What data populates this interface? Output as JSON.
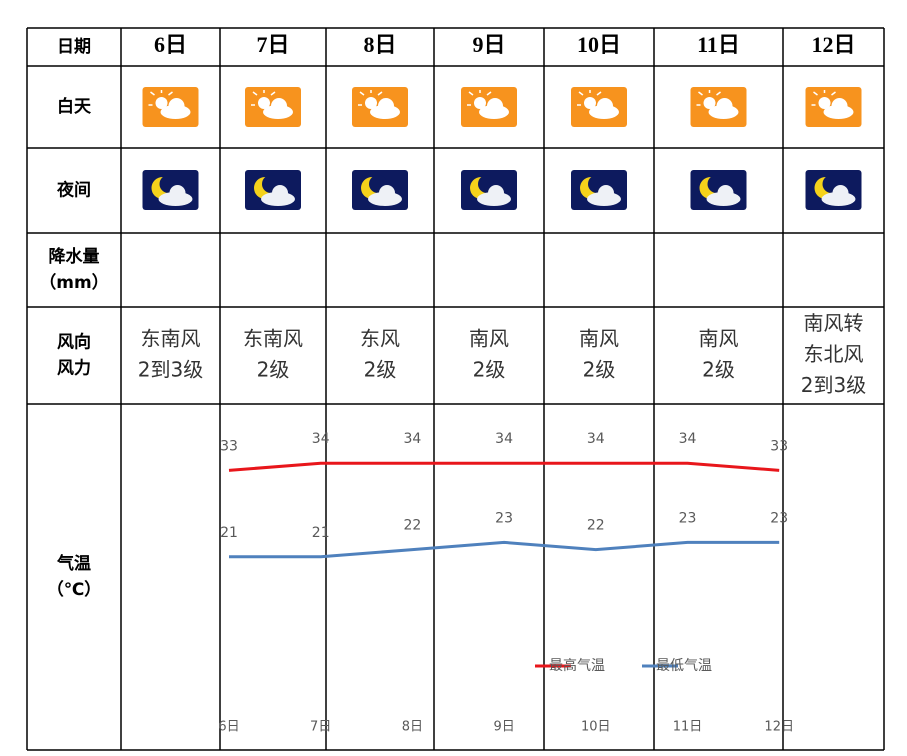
{
  "table": {
    "header": [
      "日期",
      "6日",
      "7日",
      "8日",
      "9日",
      "10日",
      "11日",
      "12日"
    ],
    "rows": [
      {
        "label": [
          "白天"
        ]
      },
      {
        "label": [
          "夜间"
        ]
      },
      {
        "label": [
          "降水量",
          "（mm）"
        ]
      },
      {
        "label": [
          "风向",
          "风力"
        ],
        "cells": [
          [
            "东南风",
            "2到3级"
          ],
          [
            "东南风",
            "2级"
          ],
          [
            "东风",
            "2级"
          ],
          [
            "南风",
            "2级"
          ],
          [
            "南风",
            "2级"
          ],
          [
            "南风",
            "2级"
          ],
          [
            "南风转",
            "东北风",
            "2到3级"
          ]
        ]
      },
      {
        "label": [
          "气温",
          "（℃）"
        ]
      }
    ]
  },
  "chart_data": {
    "type": "line",
    "categories": [
      "6日",
      "7日",
      "8日",
      "9日",
      "10日",
      "11日",
      "12日"
    ],
    "series": [
      {
        "name": "最高气温",
        "color": "#e8161b",
        "values": [
          33,
          34,
          34,
          34,
          34,
          34,
          33
        ]
      },
      {
        "name": "最低气温",
        "color": "#4f81bd",
        "values": [
          21,
          21,
          22,
          23,
          22,
          23,
          23
        ]
      }
    ],
    "ylim": [
      0,
      40
    ]
  }
}
